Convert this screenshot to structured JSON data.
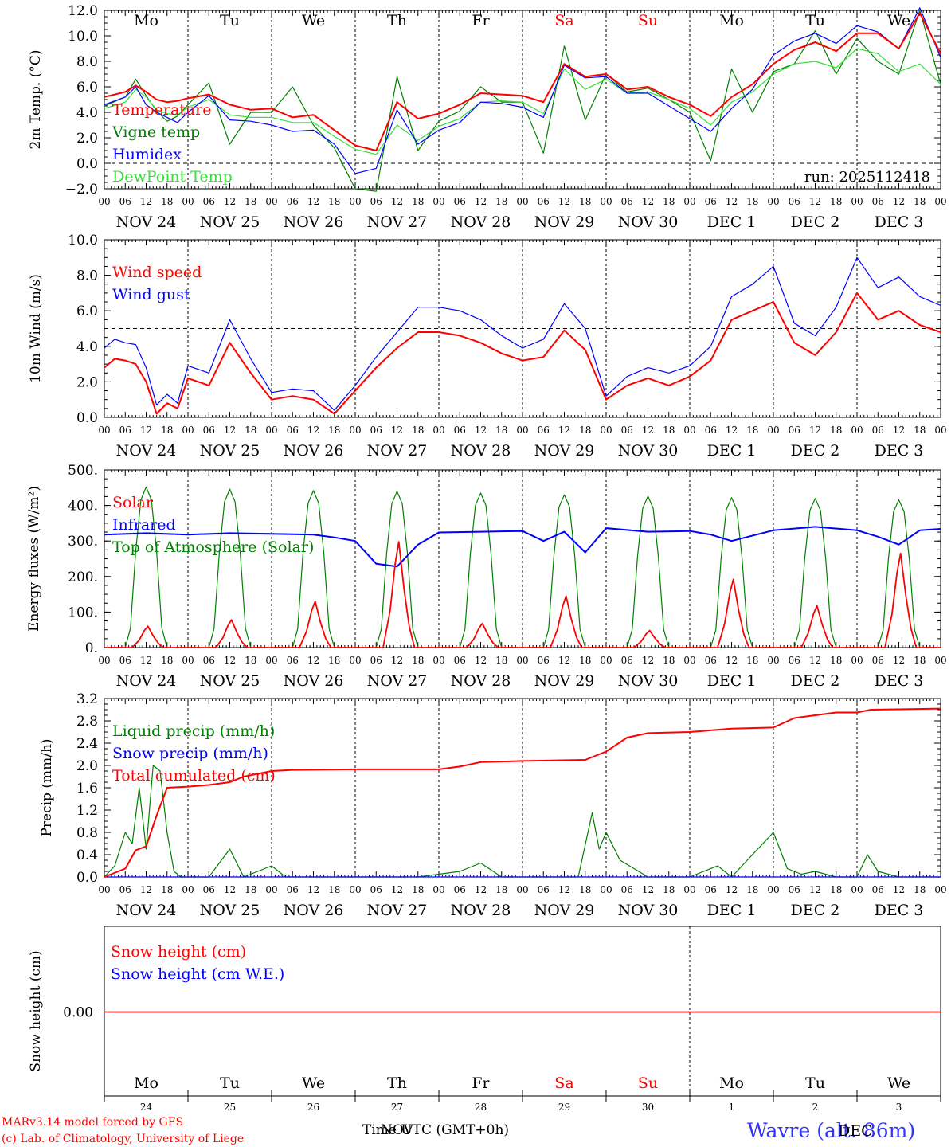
{
  "chart_data": [
    {
      "type": "line",
      "id": "temp",
      "ylabel": "2m Temp. (°C)",
      "ylim": [
        -2,
        12
      ],
      "yticks": [
        -2,
        0,
        2,
        4,
        6,
        8,
        10,
        12
      ],
      "ytick_labels": [
        "−2.0",
        "0.0",
        "2.0",
        "4.0",
        "6.0",
        "8.0",
        "10.0",
        "12.0"
      ],
      "ref_line": 0,
      "run_label": "run: 2025112418",
      "x_hours": [
        0,
        6,
        9,
        12,
        15,
        18,
        21,
        24,
        30,
        36,
        42,
        48,
        54,
        60,
        66,
        72,
        78,
        84,
        90,
        96,
        102,
        108,
        114,
        120,
        126,
        132,
        138,
        144,
        150,
        156,
        162,
        168,
        174,
        180,
        186,
        192,
        198,
        204,
        210,
        216,
        222,
        228,
        234,
        240
      ],
      "series": [
        {
          "name": "Temperature",
          "color": "#ff0000",
          "values": [
            5.2,
            5.6,
            6.1,
            5.6,
            5.0,
            4.8,
            4.9,
            5.1,
            5.4,
            4.6,
            4.2,
            4.3,
            3.6,
            3.8,
            2.6,
            1.4,
            1.0,
            4.8,
            3.5,
            3.9,
            4.6,
            5.5,
            5.4,
            5.3,
            4.8,
            7.8,
            6.8,
            7.0,
            5.8,
            6.0,
            5.2,
            4.6,
            3.7,
            5.2,
            6.2,
            7.8,
            8.9,
            9.5,
            8.8,
            10.2,
            10.2,
            9.0,
            11.8,
            8.6
          ]
        },
        {
          "name": "Vigne temp",
          "color": "#008000",
          "values": [
            4.5,
            5.2,
            6.6,
            5.3,
            4.1,
            3.3,
            3.7,
            4.6,
            6.3,
            1.5,
            4.0,
            4.0,
            6.0,
            3.0,
            1.2,
            -2.0,
            -2.2,
            6.8,
            1.0,
            3.3,
            4.1,
            6.0,
            4.8,
            4.8,
            0.8,
            9.2,
            3.4,
            7.0,
            5.6,
            5.9,
            5.0,
            4.0,
            0.2,
            7.4,
            4.0,
            7.2,
            7.8,
            10.4,
            7.0,
            9.8,
            8.0,
            7.0,
            12.0,
            6.2
          ]
        },
        {
          "name": "Humidex",
          "color": "#0000ff",
          "values": [
            4.6,
            5.2,
            6.0,
            4.6,
            4.0,
            3.6,
            3.2,
            4.0,
            5.3,
            3.4,
            3.3,
            3.0,
            2.5,
            2.6,
            1.5,
            -0.8,
            -0.4,
            4.2,
            1.5,
            2.6,
            3.2,
            4.8,
            4.7,
            4.4,
            3.6,
            7.7,
            6.7,
            6.8,
            5.5,
            5.5,
            4.5,
            3.5,
            2.5,
            4.3,
            5.8,
            8.5,
            9.6,
            10.2,
            9.4,
            10.8,
            10.3,
            9.0,
            12.2,
            8.3
          ]
        },
        {
          "name": "DewPoint Temp",
          "color": "#33e033",
          "values": [
            4.3,
            4.8,
            5.8,
            5.2,
            4.2,
            3.9,
            3.8,
            4.4,
            5.0,
            3.8,
            3.6,
            3.6,
            3.2,
            3.2,
            2.1,
            1.1,
            0.7,
            3.0,
            1.8,
            2.9,
            3.5,
            4.8,
            4.9,
            4.8,
            3.9,
            7.4,
            5.8,
            6.6,
            5.5,
            5.6,
            5.0,
            4.3,
            3.0,
            4.8,
            5.6,
            7.0,
            7.8,
            8.0,
            7.5,
            9.0,
            8.6,
            7.2,
            7.8,
            6.2
          ]
        }
      ]
    },
    {
      "type": "line",
      "id": "wind",
      "ylabel": "10m Wind (m/s)",
      "ylim": [
        0,
        10
      ],
      "yticks": [
        0,
        2,
        4,
        6,
        8,
        10
      ],
      "ytick_labels": [
        "0.0",
        "2.0",
        "4.0",
        "6.0",
        "8.0",
        "10.0"
      ],
      "ref_line": 5,
      "x_hours": [
        0,
        3,
        6,
        9,
        12,
        15,
        18,
        21,
        24,
        30,
        36,
        42,
        48,
        54,
        60,
        66,
        72,
        78,
        84,
        90,
        96,
        102,
        108,
        114,
        120,
        126,
        132,
        138,
        144,
        150,
        156,
        162,
        168,
        174,
        180,
        186,
        192,
        198,
        204,
        210,
        216,
        222,
        228,
        234,
        240
      ],
      "series": [
        {
          "name": "Wind speed",
          "color": "#ff0000",
          "values": [
            2.8,
            3.3,
            3.2,
            3.0,
            2.0,
            0.2,
            0.8,
            0.5,
            2.2,
            1.8,
            4.2,
            2.5,
            1.0,
            1.2,
            1.0,
            0.2,
            1.5,
            2.8,
            3.9,
            4.8,
            4.8,
            4.6,
            4.2,
            3.6,
            3.2,
            3.4,
            4.9,
            3.8,
            1.0,
            1.8,
            2.2,
            1.8,
            2.3,
            3.2,
            5.5,
            6.0,
            6.5,
            4.2,
            3.5,
            4.8,
            7.0,
            5.5,
            6.0,
            5.2,
            4.8
          ]
        },
        {
          "name": "Wind gust",
          "color": "#0000ff",
          "values": [
            3.9,
            4.4,
            4.2,
            4.1,
            2.8,
            0.7,
            1.3,
            0.8,
            2.9,
            2.5,
            5.5,
            3.3,
            1.4,
            1.6,
            1.5,
            0.4,
            1.8,
            3.4,
            4.8,
            6.2,
            6.2,
            6.0,
            5.5,
            4.6,
            3.9,
            4.4,
            6.4,
            5.0,
            1.2,
            2.3,
            2.8,
            2.5,
            2.9,
            4.0,
            6.8,
            7.5,
            8.5,
            5.3,
            4.6,
            6.2,
            9.0,
            7.3,
            7.9,
            6.8,
            6.3
          ]
        }
      ]
    },
    {
      "type": "line",
      "id": "flux",
      "ylabel": "Energy fluxes (W/m²)",
      "ylim": [
        0,
        500
      ],
      "yticks": [
        0,
        100,
        200,
        300,
        400,
        500
      ],
      "ytick_labels": [
        "0.",
        "100.",
        "200.",
        "300.",
        "400.",
        "500."
      ],
      "infrared": {
        "name": "Infrared",
        "color": "#0000ff",
        "x_hours": [
          0,
          12,
          24,
          36,
          48,
          60,
          66,
          72,
          78,
          84,
          90,
          96,
          108,
          120,
          126,
          132,
          138,
          144,
          156,
          168,
          174,
          180,
          192,
          204,
          216,
          222,
          228,
          234,
          240
        ],
        "values": [
          318,
          322,
          318,
          322,
          320,
          318,
          310,
          300,
          236,
          228,
          290,
          324,
          326,
          328,
          300,
          326,
          268,
          336,
          326,
          328,
          318,
          300,
          330,
          340,
          330,
          312,
          290,
          330,
          334
        ]
      },
      "top_of_atmosphere": {
        "name": "Top of Atmosphere (Solar)",
        "color": "#008000",
        "day_peaks": [
          452,
          446,
          442,
          440,
          435,
          430,
          426,
          422,
          420,
          416
        ]
      },
      "solar": {
        "name": "Solar",
        "color": "#ff0000",
        "day_peaks": [
          60,
          78,
          130,
          298,
          68,
          145,
          48,
          192,
          118,
          265
        ]
      }
    },
    {
      "type": "line",
      "id": "precip",
      "ylabel": "Precip (mm/h)",
      "ylim": [
        0,
        3.2
      ],
      "yticks": [
        0,
        0.4,
        0.8,
        1.2,
        1.6,
        2.0,
        2.4,
        2.8,
        3.2
      ],
      "ytick_labels": [
        "0.0",
        "0.4",
        "0.8",
        "1.2",
        "1.6",
        "2.0",
        "2.4",
        "2.8",
        "3.2"
      ],
      "series": [
        {
          "name": "Liquid precip (mm/h)",
          "color": "#008000",
          "x_hours": [
            0,
            3,
            6,
            8,
            10,
            12,
            14,
            16,
            18,
            20,
            22,
            24,
            30,
            36,
            40,
            48,
            52,
            60,
            72,
            90,
            102,
            108,
            114,
            120,
            136,
            140,
            142,
            144,
            148,
            156,
            168,
            176,
            180,
            192,
            196,
            200,
            204,
            210,
            216,
            219,
            222,
            228,
            240
          ],
          "values": [
            0.0,
            0.2,
            0.8,
            0.6,
            1.6,
            0.5,
            2.0,
            1.9,
            0.8,
            0.1,
            0.0,
            0.0,
            0.0,
            0.5,
            0.0,
            0.2,
            0.0,
            0.0,
            0.0,
            0.0,
            0.1,
            0.25,
            0.0,
            0.0,
            0.0,
            1.15,
            0.5,
            0.8,
            0.3,
            0.0,
            0.0,
            0.2,
            0.0,
            0.8,
            0.15,
            0.05,
            0.1,
            0.0,
            0.0,
            0.4,
            0.1,
            0.0,
            0.0
          ]
        },
        {
          "name": "Snow precip (mm/h)",
          "color": "#0000ff",
          "x_hours": [
            0,
            240
          ],
          "values": [
            0.0,
            0.0
          ]
        },
        {
          "name": "Total cumulated (cm)",
          "color": "#ff0000",
          "x_hours": [
            0,
            6,
            9,
            12,
            15,
            18,
            24,
            30,
            36,
            40,
            48,
            54,
            72,
            96,
            102,
            108,
            114,
            120,
            138,
            144,
            150,
            156,
            168,
            180,
            192,
            198,
            204,
            210,
            216,
            220,
            240
          ],
          "values": [
            0.0,
            0.15,
            0.48,
            0.55,
            1.1,
            1.6,
            1.62,
            1.65,
            1.7,
            1.8,
            1.9,
            1.92,
            1.93,
            1.93,
            1.98,
            2.06,
            2.07,
            2.08,
            2.1,
            2.25,
            2.5,
            2.58,
            2.6,
            2.66,
            2.68,
            2.85,
            2.9,
            2.95,
            2.95,
            3.0,
            3.02
          ]
        }
      ]
    },
    {
      "type": "line",
      "id": "snow",
      "ylabel": "Snow height (cm)",
      "ytick_labels": [
        "0.00"
      ],
      "series": [
        {
          "name": "Snow height (cm)",
          "color": "#ff0000",
          "values": [
            0,
            0
          ]
        },
        {
          "name": "Snow height (cm W.E.)",
          "color": "#0000ff",
          "values": [
            0,
            0
          ]
        }
      ]
    }
  ],
  "days": [
    {
      "abbr": "Mo",
      "date": "NOV 24",
      "num": "24",
      "color": "#000000"
    },
    {
      "abbr": "Tu",
      "date": "NOV 25",
      "num": "25",
      "color": "#000000"
    },
    {
      "abbr": "We",
      "date": "NOV 26",
      "num": "26",
      "color": "#000000"
    },
    {
      "abbr": "Th",
      "date": "NOV 27",
      "num": "27",
      "color": "#000000"
    },
    {
      "abbr": "Fr",
      "date": "NOV 28",
      "num": "28",
      "color": "#000000"
    },
    {
      "abbr": "Sa",
      "date": "NOV 29",
      "num": "29",
      "color": "#ff0000"
    },
    {
      "abbr": "Su",
      "date": "NOV 30",
      "num": "30",
      "color": "#ff0000"
    },
    {
      "abbr": "Mo",
      "date": "DEC  1",
      "num": "1",
      "color": "#000000"
    },
    {
      "abbr": "Tu",
      "date": "DEC  2",
      "num": "2",
      "color": "#000000"
    },
    {
      "abbr": "We",
      "date": "DEC  3",
      "num": "3",
      "color": "#000000"
    }
  ],
  "hour_labels": [
    "00",
    "06",
    "12",
    "18"
  ],
  "footer": {
    "credit_line1": "MARv3.14 model forced by GFS",
    "credit_line2": "(c) Lab. of Climatology, University of Liege",
    "time_label": "Time UTC (GMT+0h)",
    "time_overlay": "NOV",
    "location": "Wavre (alt. 86m)",
    "location_overlay": "DEC"
  }
}
